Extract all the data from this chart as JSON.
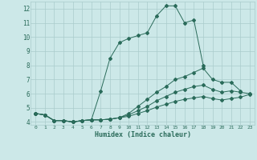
{
  "title": "",
  "xlabel": "Humidex (Indice chaleur)",
  "bg_color": "#cce8e8",
  "grid_color": "#aacccc",
  "line_color": "#2a6b5a",
  "xlim": [
    -0.5,
    23.5
  ],
  "ylim": [
    3.8,
    12.5
  ],
  "xticks": [
    0,
    1,
    2,
    3,
    4,
    5,
    6,
    7,
    8,
    9,
    10,
    11,
    12,
    13,
    14,
    15,
    16,
    17,
    18,
    19,
    20,
    21,
    22,
    23
  ],
  "yticks": [
    4,
    5,
    6,
    7,
    8,
    9,
    10,
    11,
    12
  ],
  "series": [
    {
      "x": [
        0,
        1,
        2,
        3,
        4,
        5,
        6,
        7,
        8,
        9,
        10,
        11,
        12,
        13,
        14,
        15,
        16,
        17,
        18
      ],
      "y": [
        4.6,
        4.5,
        4.1,
        4.1,
        4.0,
        4.1,
        4.15,
        6.2,
        8.5,
        9.6,
        9.9,
        10.1,
        10.3,
        11.5,
        12.2,
        12.2,
        11.0,
        11.2,
        8.0
      ]
    },
    {
      "x": [
        0,
        1,
        2,
        3,
        4,
        5,
        6,
        7,
        8,
        9,
        10,
        11,
        12,
        13,
        14,
        15,
        16,
        17,
        18,
        19,
        20,
        21,
        22
      ],
      "y": [
        4.6,
        4.5,
        4.1,
        4.1,
        4.0,
        4.1,
        4.15,
        4.15,
        4.2,
        4.3,
        4.6,
        5.1,
        5.6,
        6.1,
        6.5,
        7.0,
        7.2,
        7.5,
        7.8,
        7.0,
        6.8,
        6.8,
        6.2
      ]
    },
    {
      "x": [
        0,
        1,
        2,
        3,
        4,
        5,
        6,
        7,
        8,
        9,
        10,
        11,
        12,
        13,
        14,
        15,
        16,
        17,
        18,
        19,
        20,
        21,
        22,
        23
      ],
      "y": [
        4.6,
        4.5,
        4.1,
        4.1,
        4.0,
        4.1,
        4.15,
        4.15,
        4.2,
        4.3,
        4.5,
        4.8,
        5.1,
        5.5,
        5.8,
        6.1,
        6.3,
        6.5,
        6.6,
        6.3,
        6.1,
        6.2,
        6.1,
        6.0
      ]
    },
    {
      "x": [
        0,
        1,
        2,
        3,
        4,
        5,
        6,
        7,
        8,
        9,
        10,
        11,
        12,
        13,
        14,
        15,
        16,
        17,
        18,
        19,
        20,
        21,
        22,
        23
      ],
      "y": [
        4.6,
        4.5,
        4.1,
        4.1,
        4.0,
        4.1,
        4.15,
        4.15,
        4.2,
        4.3,
        4.4,
        4.6,
        4.8,
        5.05,
        5.25,
        5.45,
        5.6,
        5.7,
        5.8,
        5.65,
        5.55,
        5.65,
        5.75,
        5.95
      ]
    }
  ]
}
